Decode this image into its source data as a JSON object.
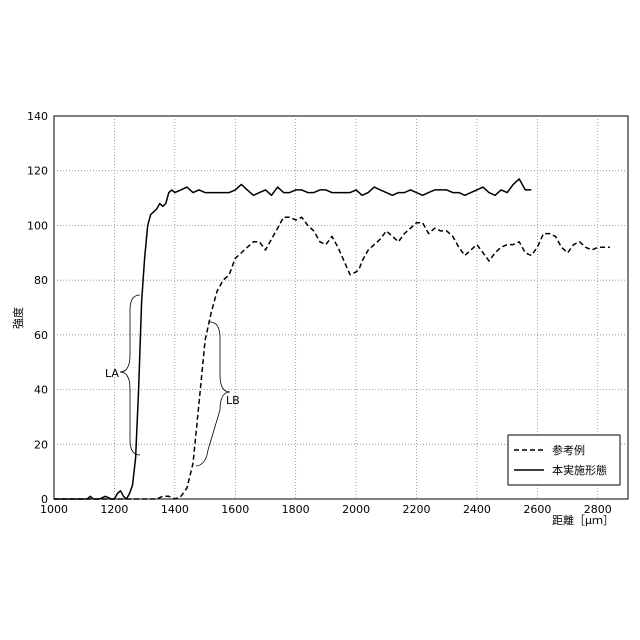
{
  "chart_data": {
    "type": "line",
    "title": "",
    "xlabel": "距離［μｍ］",
    "ylabel": "強度",
    "xlim": [
      1000,
      2900
    ],
    "ylim": [
      0,
      140
    ],
    "x_ticks": [
      1000,
      1200,
      1400,
      1600,
      1800,
      2000,
      2200,
      2400,
      2600,
      2800
    ],
    "y_ticks": [
      0,
      20,
      40,
      60,
      80,
      100,
      120,
      140
    ],
    "grid": "dotted",
    "legend": "bottom-right",
    "series": [
      {
        "name": "参考例",
        "style": "dashed",
        "color": "#000000",
        "x": [
          1000,
          1200,
          1250,
          1300,
          1340,
          1360,
          1380,
          1400,
          1420,
          1440,
          1460,
          1480,
          1500,
          1520,
          1540,
          1560,
          1580,
          1600,
          1620,
          1640,
          1660,
          1680,
          1700,
          1720,
          1740,
          1760,
          1780,
          1800,
          1820,
          1840,
          1860,
          1880,
          1900,
          1920,
          1940,
          1960,
          1980,
          2000,
          2010,
          2020,
          2040,
          2060,
          2080,
          2100,
          2120,
          2140,
          2160,
          2180,
          2200,
          2220,
          2240,
          2260,
          2280,
          2300,
          2320,
          2340,
          2360,
          2380,
          2400,
          2420,
          2440,
          2460,
          2480,
          2500,
          2520,
          2540,
          2560,
          2580,
          2600,
          2620,
          2640,
          2660,
          2680,
          2700,
          2720,
          2740,
          2760,
          2780,
          2800,
          2820,
          2840
        ],
        "y": [
          0,
          0,
          0,
          0,
          0,
          1,
          1,
          0,
          1,
          4,
          13,
          35,
          58,
          68,
          76,
          80,
          82,
          88,
          90,
          92,
          94,
          94,
          91,
          95,
          99,
          103,
          103,
          102,
          103,
          100,
          98,
          94,
          93,
          96,
          92,
          87,
          82,
          83,
          84,
          87,
          91,
          93,
          95,
          98,
          96,
          94,
          97,
          99,
          101,
          101,
          97,
          99,
          98,
          98,
          96,
          92,
          89,
          91,
          93,
          90,
          87,
          90,
          92,
          93,
          93,
          94,
          90,
          89,
          92,
          97,
          97,
          96,
          92,
          90,
          93,
          94,
          92,
          91,
          92,
          92,
          92
        ]
      },
      {
        "name": "本実施形態",
        "style": "solid",
        "color": "#000000",
        "x": [
          1000,
          1110,
          1120,
          1130,
          1150,
          1170,
          1190,
          1200,
          1210,
          1220,
          1230,
          1240,
          1250,
          1260,
          1270,
          1280,
          1290,
          1300,
          1310,
          1320,
          1330,
          1340,
          1350,
          1360,
          1370,
          1380,
          1390,
          1400,
          1420,
          1440,
          1460,
          1480,
          1500,
          1520,
          1540,
          1560,
          1580,
          1600,
          1620,
          1640,
          1660,
          1680,
          1700,
          1720,
          1740,
          1760,
          1780,
          1800,
          1820,
          1840,
          1860,
          1880,
          1900,
          1920,
          1940,
          1960,
          1980,
          2000,
          2020,
          2040,
          2060,
          2080,
          2100,
          2120,
          2140,
          2160,
          2180,
          2200,
          2220,
          2240,
          2260,
          2280,
          2300,
          2320,
          2340,
          2360,
          2380,
          2400,
          2420,
          2440,
          2460,
          2480,
          2500,
          2520,
          2540,
          2560,
          2580
        ],
        "y": [
          0,
          0,
          1,
          0,
          0,
          1,
          0,
          0,
          2,
          3,
          1,
          0,
          2,
          5,
          15,
          40,
          72,
          88,
          100,
          104,
          105,
          106,
          108,
          107,
          108,
          112,
          113,
          112,
          113,
          114,
          112,
          113,
          112,
          112,
          112,
          112,
          112,
          113,
          115,
          113,
          111,
          112,
          113,
          111,
          114,
          112,
          112,
          113,
          113,
          112,
          112,
          113,
          113,
          112,
          112,
          112,
          112,
          113,
          111,
          112,
          114,
          113,
          112,
          111,
          112,
          112,
          113,
          112,
          111,
          112,
          113,
          113,
          113,
          112,
          112,
          111,
          112,
          113,
          114,
          112,
          111,
          113,
          112,
          115,
          117,
          113,
          113
        ]
      }
    ],
    "annotations": [
      {
        "text": "LA",
        "x": 1200,
        "y": 40
      },
      {
        "text": "LB",
        "x": 1500,
        "y": 36
      }
    ]
  }
}
